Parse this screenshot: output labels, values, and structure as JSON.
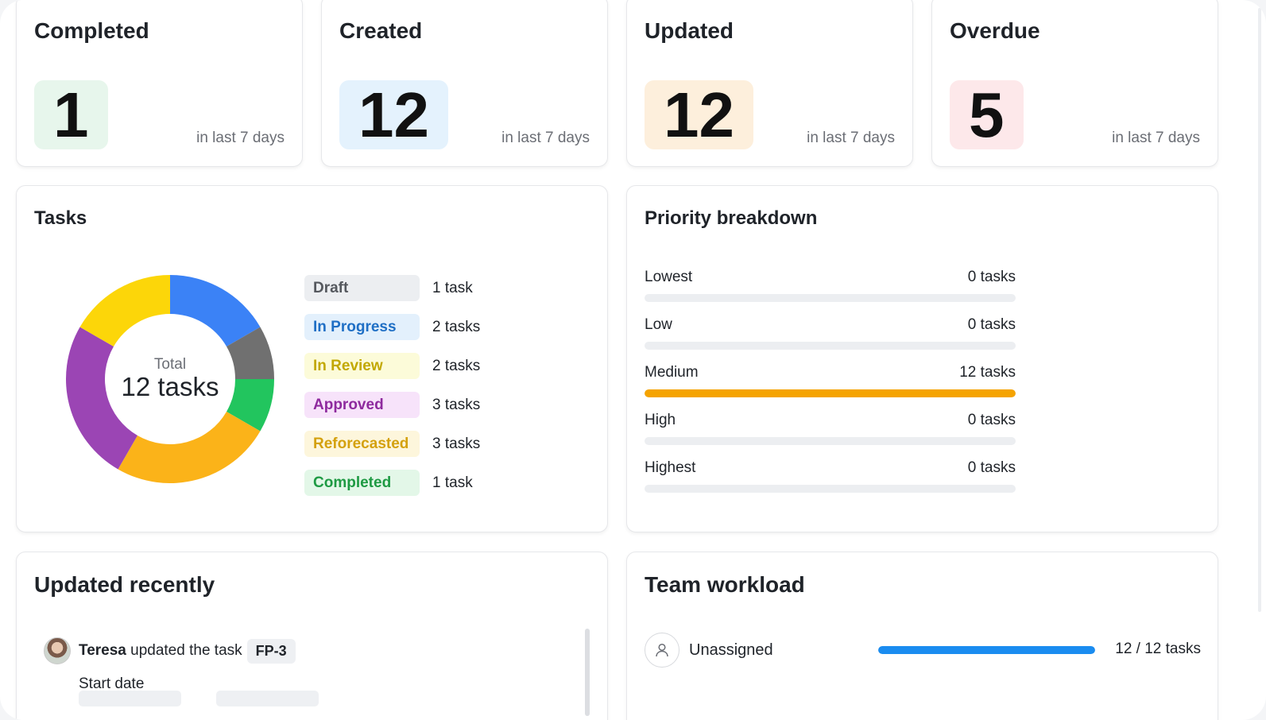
{
  "stats": [
    {
      "title": "Completed",
      "value": "1",
      "subtitle": "in last 7 days",
      "color": "#e7f6ec"
    },
    {
      "title": "Created",
      "value": "12",
      "subtitle": "in last 7 days",
      "color": "#e4f2fd"
    },
    {
      "title": "Updated",
      "value": "12",
      "subtitle": "in last 7 days",
      "color": "#fdefdc"
    },
    {
      "title": "Overdue",
      "value": "5",
      "subtitle": "in last 7 days",
      "color": "#fde8ea"
    }
  ],
  "tasks": {
    "title": "Tasks",
    "total_label": "Total",
    "total_value": "12 tasks",
    "items": [
      {
        "status": "Draft",
        "count": "1 task",
        "chip_bg": "#eceef1",
        "chip_fg": "#55585e"
      },
      {
        "status": "In Progress",
        "count": "2 tasks",
        "chip_bg": "#e3f0fc",
        "chip_fg": "#1f6fc5"
      },
      {
        "status": "In Review",
        "count": "2 tasks",
        "chip_bg": "#fcfbd9",
        "chip_fg": "#c2a800"
      },
      {
        "status": "Approved",
        "count": "3 tasks",
        "chip_bg": "#f7e3fa",
        "chip_fg": "#8e2a9e"
      },
      {
        "status": "Reforecasted",
        "count": "3 tasks",
        "chip_bg": "#fdf6dc",
        "chip_fg": "#d4a10e"
      },
      {
        "status": "Completed",
        "count": "1 task",
        "chip_bg": "#e3f7e8",
        "chip_fg": "#1e9a43"
      }
    ]
  },
  "chart_data": {
    "type": "pie",
    "variant": "donut",
    "categories": [
      "In Progress",
      "Draft",
      "Completed",
      "Reforecasted",
      "Approved",
      "In Review"
    ],
    "values": [
      2,
      1,
      1,
      3,
      3,
      2
    ],
    "colors": [
      "#3b82f6",
      "#707070",
      "#22c55e",
      "#fbb319",
      "#9b45b4",
      "#fcd609"
    ]
  },
  "priority": {
    "title": "Priority breakdown",
    "total": 12,
    "rows": [
      {
        "label": "Lowest",
        "count_text": "0 tasks",
        "value": 0
      },
      {
        "label": "Low",
        "count_text": "0 tasks",
        "value": 0
      },
      {
        "label": "Medium",
        "count_text": "12 tasks",
        "value": 12
      },
      {
        "label": "High",
        "count_text": "0 tasks",
        "value": 0
      },
      {
        "label": "Highest",
        "count_text": "0 tasks",
        "value": 0
      }
    ]
  },
  "updated_recently": {
    "title": "Updated recently",
    "user": "Teresa",
    "action": "updated the task",
    "task_key": "FP-3",
    "field": "Start date"
  },
  "team_workload": {
    "title": "Team workload",
    "assignee": "Unassigned",
    "count_text": "12 / 12 tasks",
    "fraction": 1.0
  }
}
